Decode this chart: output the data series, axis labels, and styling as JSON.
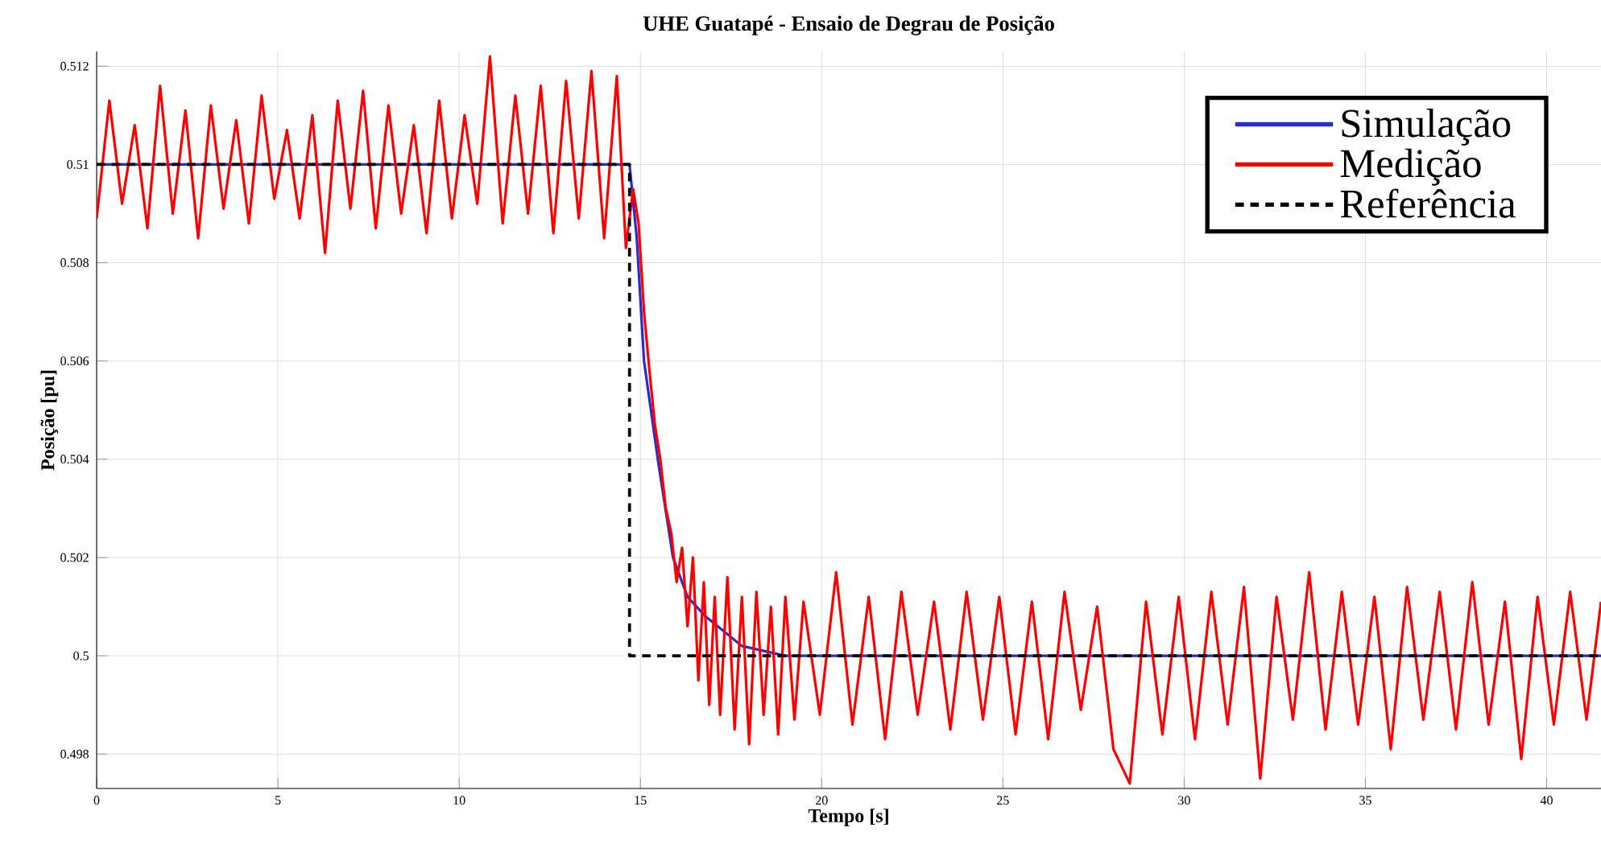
{
  "chart_data": {
    "type": "line",
    "title": "**UHE Guatapé - Ensaio de Degrau de Posição**",
    "xlabel": "**Tempo [s]**",
    "ylabel": "**Posição [pu]**",
    "xlim": [
      0,
      41.5
    ],
    "ylim": [
      0.4973,
      0.5123
    ],
    "xticks": [
      0,
      5,
      10,
      15,
      20,
      25,
      30,
      35,
      40
    ],
    "yticks": [
      0.498,
      0.5,
      0.502,
      0.504,
      0.506,
      0.508,
      0.51,
      0.512
    ],
    "grid": true,
    "legend": "top right",
    "series": [
      {
        "name": "Simulação",
        "color": "#2a2ad0",
        "line_style": "solid",
        "x": [
          0,
          14.7,
          14.9,
          15.1,
          15.5,
          15.9,
          16.3,
          16.8,
          17.8,
          19,
          41.5
        ],
        "values": [
          0.51,
          0.51,
          0.5085,
          0.506,
          0.5039,
          0.502,
          0.5012,
          0.5008,
          0.5002,
          0.5,
          0.5
        ]
      },
      {
        "name": "Medição",
        "color": "#ff0000",
        "line_style": "solid",
        "x": [
          0,
          0.35,
          0.7,
          1.05,
          1.4,
          1.75,
          2.1,
          2.45,
          2.8,
          3.15,
          3.5,
          3.85,
          4.2,
          4.55,
          4.9,
          5.25,
          5.6,
          5.95,
          6.3,
          6.65,
          7.0,
          7.35,
          7.7,
          8.05,
          8.4,
          8.75,
          9.1,
          9.45,
          9.8,
          10.15,
          10.5,
          10.85,
          11.2,
          11.55,
          11.9,
          12.25,
          12.6,
          12.95,
          13.3,
          13.65,
          14.0,
          14.35,
          14.6,
          14.8,
          14.95,
          15.1,
          15.25,
          15.4,
          15.55,
          15.7,
          15.85,
          16.0,
          16.15,
          16.3,
          16.45,
          16.6,
          16.75,
          16.9,
          17.05,
          17.2,
          17.4,
          17.6,
          17.8,
          18.0,
          18.2,
          18.4,
          18.6,
          18.8,
          19.0,
          19.25,
          19.5,
          19.95,
          20.4,
          20.85,
          21.3,
          21.75,
          22.2,
          22.65,
          23.1,
          23.55,
          24.0,
          24.45,
          24.9,
          25.35,
          25.8,
          26.25,
          26.7,
          27.15,
          27.6,
          28.05,
          28.5,
          28.95,
          29.4,
          29.85,
          30.3,
          30.75,
          31.2,
          31.65,
          32.1,
          32.55,
          33.0,
          33.45,
          33.9,
          34.35,
          34.8,
          35.25,
          35.7,
          36.15,
          36.6,
          37.05,
          37.5,
          37.95,
          38.4,
          38.85,
          39.3,
          39.75,
          40.2,
          40.65,
          41.1,
          41.5
        ],
        "values": [
          0.5089,
          0.5113,
          0.5092,
          0.5108,
          0.5087,
          0.5116,
          0.509,
          0.5111,
          0.5085,
          0.5112,
          0.5091,
          0.5109,
          0.5088,
          0.5114,
          0.5093,
          0.5107,
          0.5089,
          0.511,
          0.5082,
          0.5113,
          0.5091,
          0.5115,
          0.5087,
          0.5112,
          0.509,
          0.5108,
          0.5086,
          0.5113,
          0.5089,
          0.511,
          0.5092,
          0.5122,
          0.5088,
          0.5114,
          0.509,
          0.5116,
          0.5086,
          0.5117,
          0.5089,
          0.5119,
          0.5085,
          0.5118,
          0.5083,
          0.5095,
          0.5088,
          0.507,
          0.5058,
          0.5047,
          0.504,
          0.503,
          0.5025,
          0.5015,
          0.5022,
          0.5006,
          0.502,
          0.4995,
          0.5015,
          0.499,
          0.5012,
          0.4988,
          0.5016,
          0.4985,
          0.5012,
          0.4982,
          0.5013,
          0.4988,
          0.501,
          0.4984,
          0.5012,
          0.4987,
          0.5011,
          0.4988,
          0.5017,
          0.4986,
          0.5012,
          0.4983,
          0.5013,
          0.4988,
          0.5011,
          0.4985,
          0.5013,
          0.4987,
          0.5012,
          0.4984,
          0.5011,
          0.4983,
          0.5013,
          0.4989,
          0.501,
          0.4981,
          0.4974,
          0.5011,
          0.4984,
          0.5012,
          0.4983,
          0.5013,
          0.4986,
          0.5014,
          0.4975,
          0.5012,
          0.4987,
          0.5017,
          0.4985,
          0.5013,
          0.4986,
          0.5012,
          0.4981,
          0.5014,
          0.4987,
          0.5013,
          0.4985,
          0.5015,
          0.4986,
          0.5011,
          0.4979,
          0.5012,
          0.4986,
          0.5013,
          0.4987,
          0.5011
        ]
      },
      {
        "name": "Referência",
        "color": "#000000",
        "line_style": "dashed",
        "x": [
          0,
          14.7,
          14.7,
          41.5
        ],
        "values": [
          0.51,
          0.51,
          0.5,
          0.5
        ]
      }
    ]
  }
}
